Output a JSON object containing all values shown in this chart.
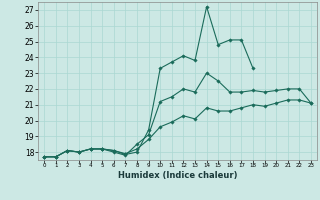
{
  "xlabel": "Humidex (Indice chaleur)",
  "background_color": "#cce8e4",
  "grid_color": "#aad8d2",
  "line_color": "#1a6b5a",
  "xlim": [
    -0.5,
    23.5
  ],
  "ylim": [
    17.5,
    27.5
  ],
  "xticks": [
    0,
    1,
    2,
    3,
    4,
    5,
    6,
    7,
    8,
    9,
    10,
    11,
    12,
    13,
    14,
    15,
    16,
    17,
    18,
    19,
    20,
    21,
    22,
    23
  ],
  "yticks": [
    18,
    19,
    20,
    21,
    22,
    23,
    24,
    25,
    26,
    27
  ],
  "series": [
    {
      "x": [
        0,
        1,
        2,
        3,
        4,
        5,
        6,
        7,
        8,
        9,
        10,
        11,
        12,
        13,
        14,
        15,
        16,
        17,
        18
      ],
      "y": [
        17.7,
        17.7,
        18.1,
        18.0,
        18.2,
        18.2,
        18.1,
        17.85,
        18.0,
        19.4,
        23.3,
        23.7,
        24.1,
        23.8,
        27.2,
        24.8,
        25.1,
        25.1,
        23.3
      ]
    },
    {
      "x": [
        0,
        1,
        2,
        3,
        4,
        5,
        6,
        7,
        8,
        9,
        10,
        11,
        12,
        13,
        14,
        15,
        16,
        17,
        18,
        19,
        20,
        21,
        22,
        23
      ],
      "y": [
        17.7,
        17.7,
        18.1,
        18.0,
        18.2,
        18.2,
        18.0,
        17.8,
        18.5,
        19.1,
        21.2,
        21.5,
        22.0,
        21.8,
        23.0,
        22.5,
        21.8,
        21.8,
        21.9,
        21.8,
        21.9,
        22.0,
        22.0,
        21.1
      ]
    },
    {
      "x": [
        0,
        1,
        2,
        3,
        4,
        5,
        6,
        7,
        8,
        9,
        10,
        11,
        12,
        13,
        14,
        15,
        16,
        17,
        18,
        19,
        20,
        21,
        22,
        23
      ],
      "y": [
        17.7,
        17.7,
        18.1,
        18.0,
        18.2,
        18.2,
        18.1,
        17.9,
        18.2,
        18.8,
        19.6,
        19.9,
        20.3,
        20.1,
        20.8,
        20.6,
        20.6,
        20.8,
        21.0,
        20.9,
        21.1,
        21.3,
        21.3,
        21.1
      ]
    }
  ]
}
